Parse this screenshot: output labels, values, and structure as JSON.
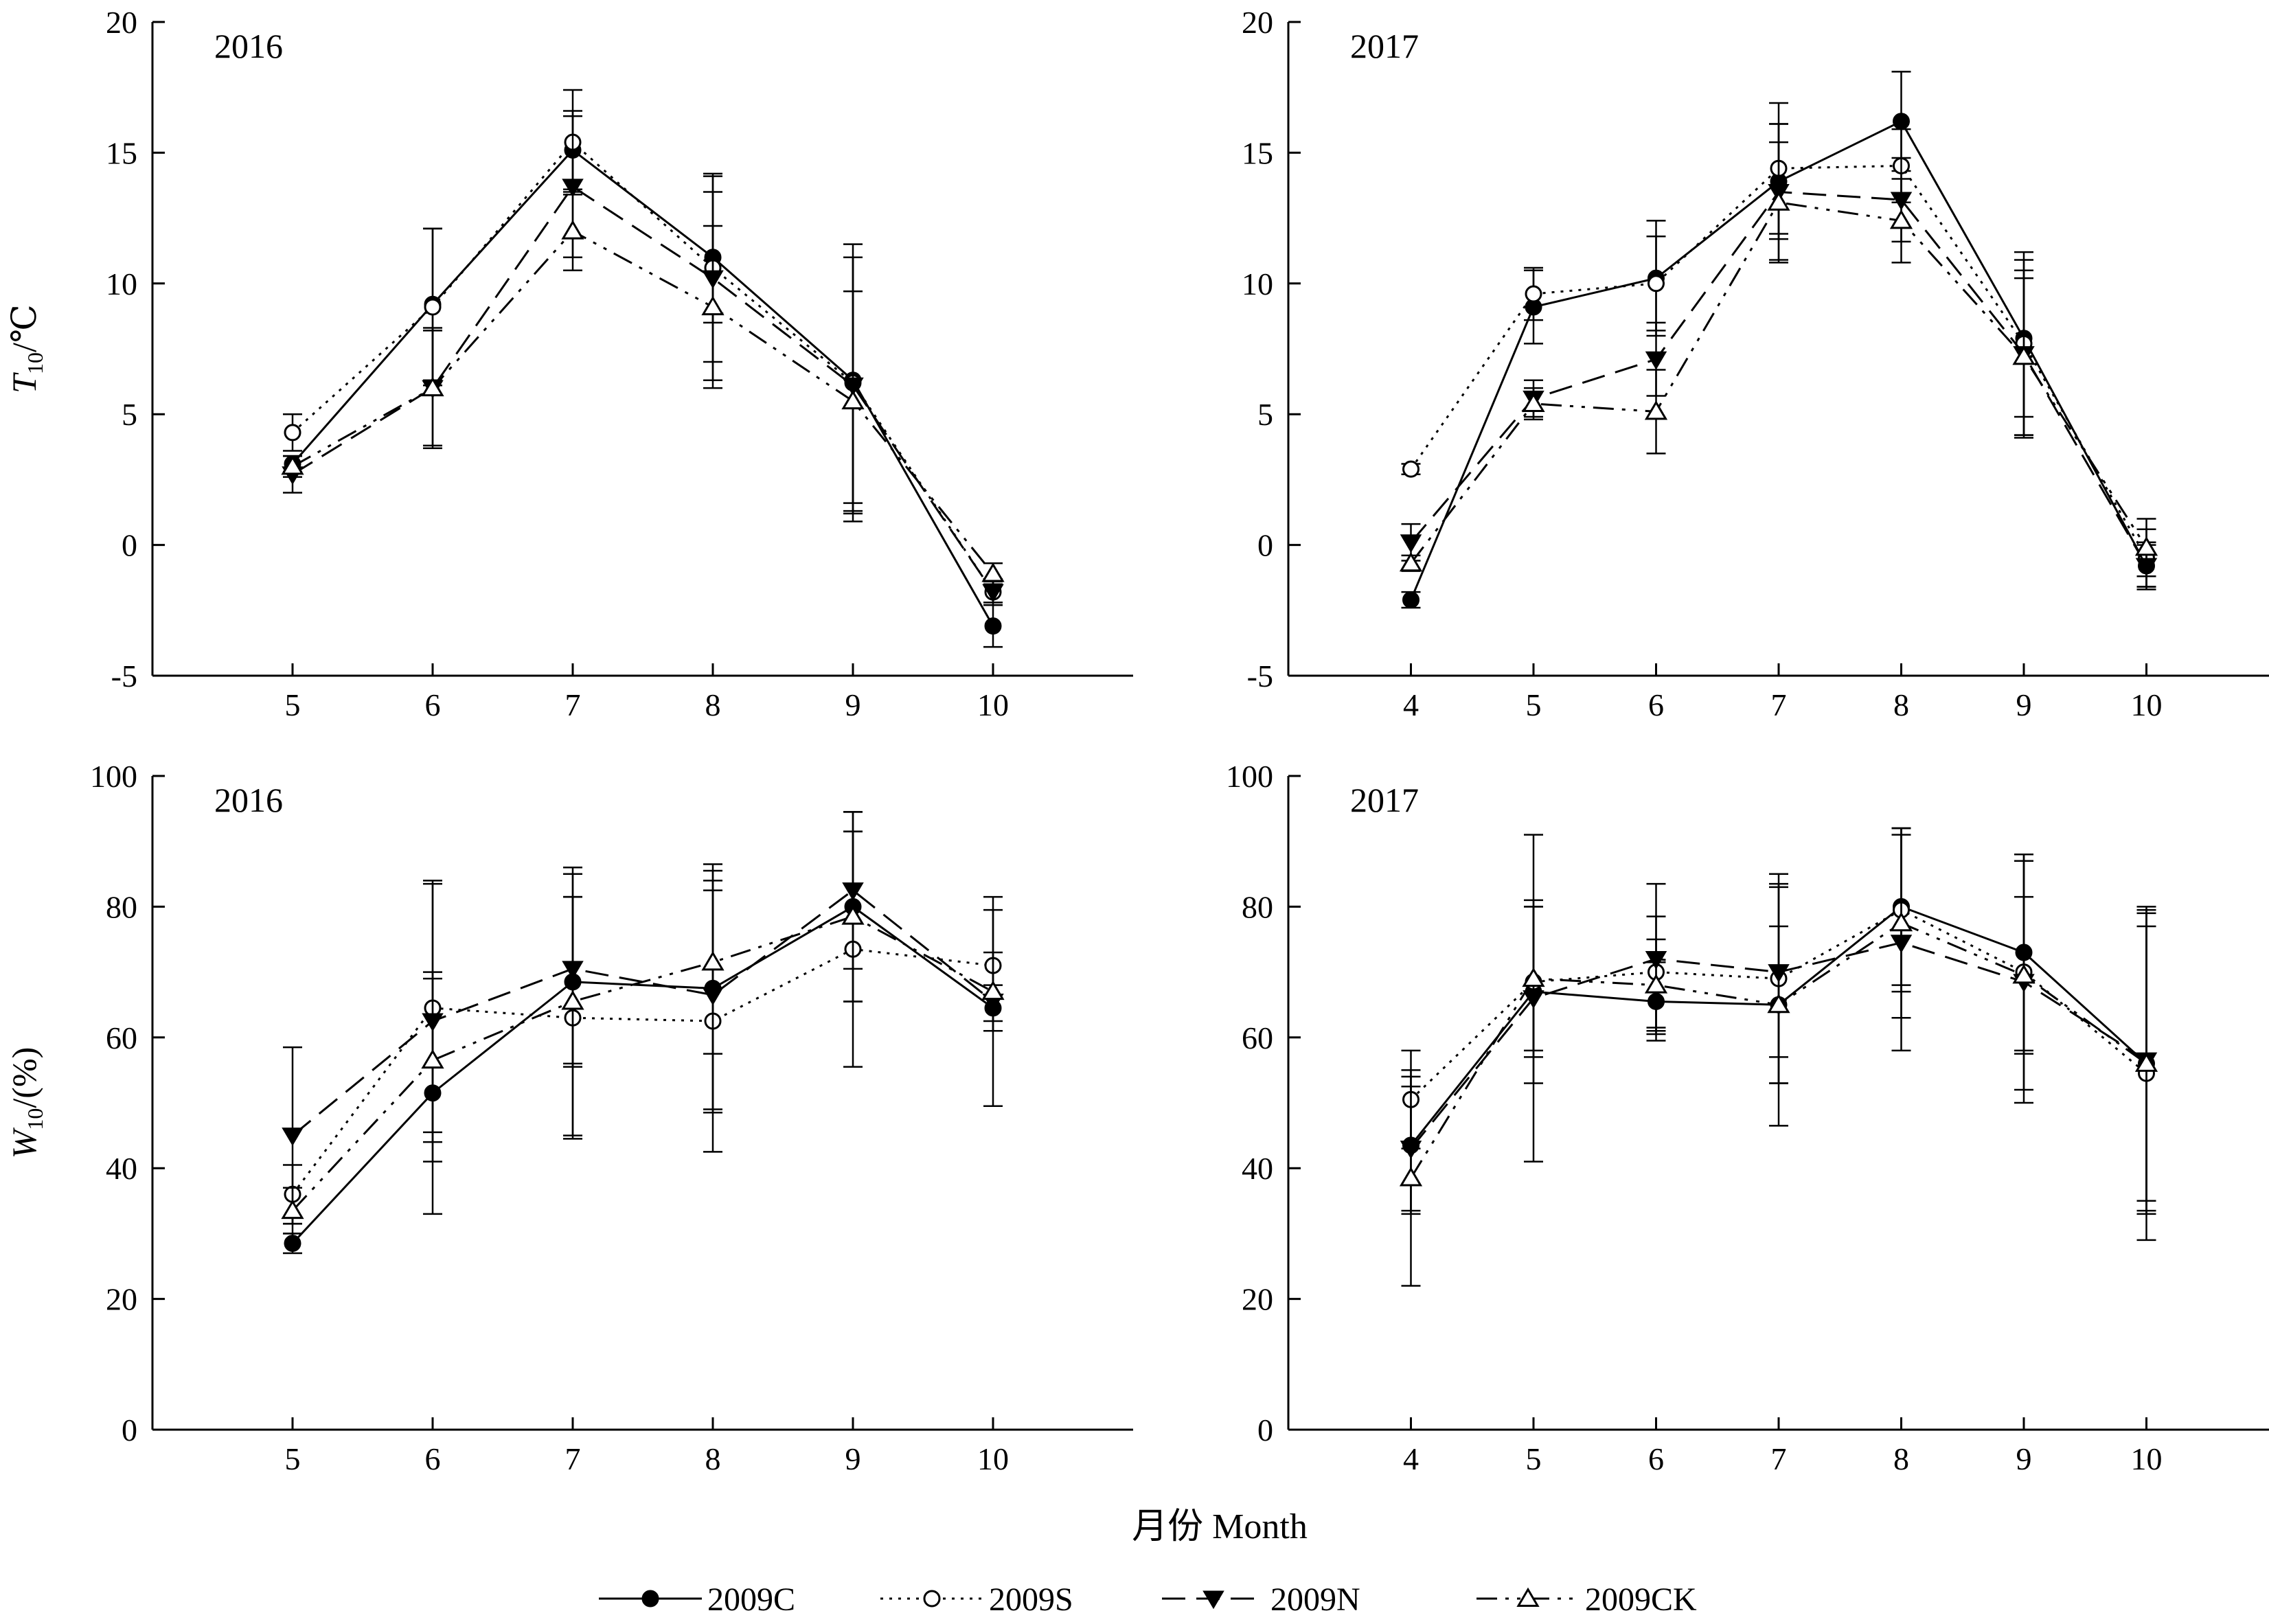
{
  "figure": {
    "xlabel": "月份 Month"
  },
  "legend": [
    {
      "name": "2009C",
      "marker": "circle-filled",
      "dash": "solid"
    },
    {
      "name": "2009S",
      "marker": "circle-open",
      "dash": "dotted"
    },
    {
      "name": "2009N",
      "marker": "triangle-down-filled",
      "dash": "dashed"
    },
    {
      "name": "2009CK",
      "marker": "triangle-up-open",
      "dash": "dashdotdot"
    }
  ],
  "chart_data": [
    {
      "type": "line",
      "panel_label": "2016",
      "ylabel": {
        "main": "T",
        "sub": "10",
        "suffix": "/℃"
      },
      "ylim": [
        -5,
        20
      ],
      "yticks": [
        -5,
        0,
        5,
        10,
        15,
        20
      ],
      "x": [
        5,
        6,
        7,
        8,
        9,
        10
      ],
      "xlim": [
        4,
        11
      ],
      "grid": false,
      "series": [
        {
          "name": "2009C",
          "values": [
            3.1,
            9.2,
            15.1,
            11.0,
            6.3,
            -3.1
          ],
          "err": [
            0.3,
            2.9,
            1.5,
            2.5,
            4.7,
            0.8
          ]
        },
        {
          "name": "2009S",
          "values": [
            4.3,
            9.1,
            15.4,
            10.6,
            6.2,
            -1.8
          ],
          "err": [
            0.7,
            3.0,
            2.0,
            3.6,
            5.3,
            0.5
          ]
        },
        {
          "name": "2009N",
          "values": [
            2.7,
            6.0,
            13.7,
            10.2,
            6.1,
            -1.8
          ],
          "err": [
            0.7,
            2.2,
            2.7,
            3.9,
            4.9,
            0.4
          ]
        },
        {
          "name": "2009CK",
          "values": [
            3.0,
            6.0,
            12.0,
            9.1,
            5.5,
            -1.1
          ],
          "err": [
            0.4,
            2.3,
            1.5,
            3.1,
            4.2,
            0.4
          ]
        }
      ]
    },
    {
      "type": "line",
      "panel_label": "2017",
      "ylabel": {
        "main": "",
        "sub": "",
        "suffix": ""
      },
      "ylim": [
        -5,
        20
      ],
      "yticks": [
        -5,
        0,
        5,
        10,
        15,
        20
      ],
      "x": [
        4,
        5,
        6,
        7,
        8,
        9,
        10
      ],
      "xlim": [
        3,
        11
      ],
      "grid": false,
      "series": [
        {
          "name": "2009C",
          "values": [
            -2.1,
            9.1,
            10.2,
            13.9,
            16.2,
            7.9,
            -0.8
          ],
          "err": [
            0.3,
            1.4,
            2.2,
            2.2,
            1.9,
            3.0,
            0.8
          ]
        },
        {
          "name": "2009S",
          "values": [
            2.9,
            9.6,
            10.0,
            14.4,
            14.5,
            7.7,
            -0.5
          ],
          "err": [
            0.2,
            1.0,
            1.8,
            2.5,
            1.4,
            3.5,
            1.1
          ]
        },
        {
          "name": "2009N",
          "values": [
            0.1,
            5.6,
            7.1,
            13.5,
            13.2,
            7.3,
            -0.8
          ],
          "err": [
            0.7,
            0.7,
            1.4,
            2.6,
            1.6,
            3.2,
            0.9
          ]
        },
        {
          "name": "2009CK",
          "values": [
            -0.7,
            5.4,
            5.1,
            13.1,
            12.4,
            7.2,
            -0.1
          ],
          "err": [
            0.3,
            0.6,
            1.6,
            2.3,
            1.6,
            3.0,
            1.1
          ]
        }
      ]
    },
    {
      "type": "line",
      "panel_label": "2016",
      "ylabel": {
        "main": "W",
        "sub": "10",
        "suffix": "/(%)"
      },
      "ylim": [
        0,
        100
      ],
      "yticks": [
        0,
        20,
        40,
        60,
        80,
        100
      ],
      "x": [
        5,
        6,
        7,
        8,
        9,
        10
      ],
      "xlim": [
        4,
        11
      ],
      "grid": false,
      "series": [
        {
          "name": "2009C",
          "values": [
            28.5,
            51.5,
            68.5,
            67.5,
            80.0,
            64.5
          ],
          "err": [
            1.5,
            18.5,
            13.0,
            19.0,
            14.5,
            3.5
          ]
        },
        {
          "name": "2009S",
          "values": [
            36.0,
            64.5,
            63.0,
            62.5,
            73.5,
            71.0
          ],
          "err": [
            4.5,
            19.0,
            18.5,
            20.0,
            18.0,
            8.5
          ]
        },
        {
          "name": "2009N",
          "values": [
            45.0,
            62.5,
            70.5,
            66.5,
            82.5,
            65.5
          ],
          "err": [
            13.5,
            21.5,
            14.5,
            17.5,
            12.0,
            16.0
          ]
        },
        {
          "name": "2009CK",
          "values": [
            33.5,
            56.5,
            65.5,
            71.5,
            78.5,
            67.0
          ],
          "err": [
            3.5,
            12.5,
            20.5,
            14.0,
            13.0,
            6.0
          ]
        }
      ]
    },
    {
      "type": "line",
      "panel_label": "2017",
      "ylabel": {
        "main": "",
        "sub": "",
        "suffix": ""
      },
      "ylim": [
        0,
        100
      ],
      "yticks": [
        0,
        20,
        40,
        60,
        80,
        100
      ],
      "x": [
        4,
        5,
        6,
        7,
        8,
        9,
        10
      ],
      "xlim": [
        3,
        11
      ],
      "grid": false,
      "series": [
        {
          "name": "2009C",
          "values": [
            43.5,
            67.0,
            65.5,
            65.0,
            80.0,
            73.0,
            56.0
          ],
          "err": [
            10.5,
            14.0,
            6.0,
            18.5,
            12.0,
            15.0,
            23.0
          ]
        },
        {
          "name": "2009S",
          "values": [
            50.5,
            68.5,
            70.0,
            69.0,
            79.5,
            70.0,
            54.5
          ],
          "err": [
            7.5,
            11.5,
            8.5,
            16.0,
            12.5,
            18.0,
            25.5
          ]
        },
        {
          "name": "2009N",
          "values": [
            43.0,
            66.0,
            72.0,
            70.0,
            74.5,
            68.5,
            56.5
          ],
          "err": [
            9.5,
            25.0,
            11.5,
            13.0,
            16.5,
            18.5,
            23.0
          ]
        },
        {
          "name": "2009CK",
          "values": [
            38.5,
            69.0,
            68.0,
            65.0,
            77.5,
            69.5,
            56.0
          ],
          "err": [
            16.5,
            11.0,
            7.0,
            12.0,
            14.5,
            12.0,
            21.0
          ]
        }
      ]
    }
  ]
}
